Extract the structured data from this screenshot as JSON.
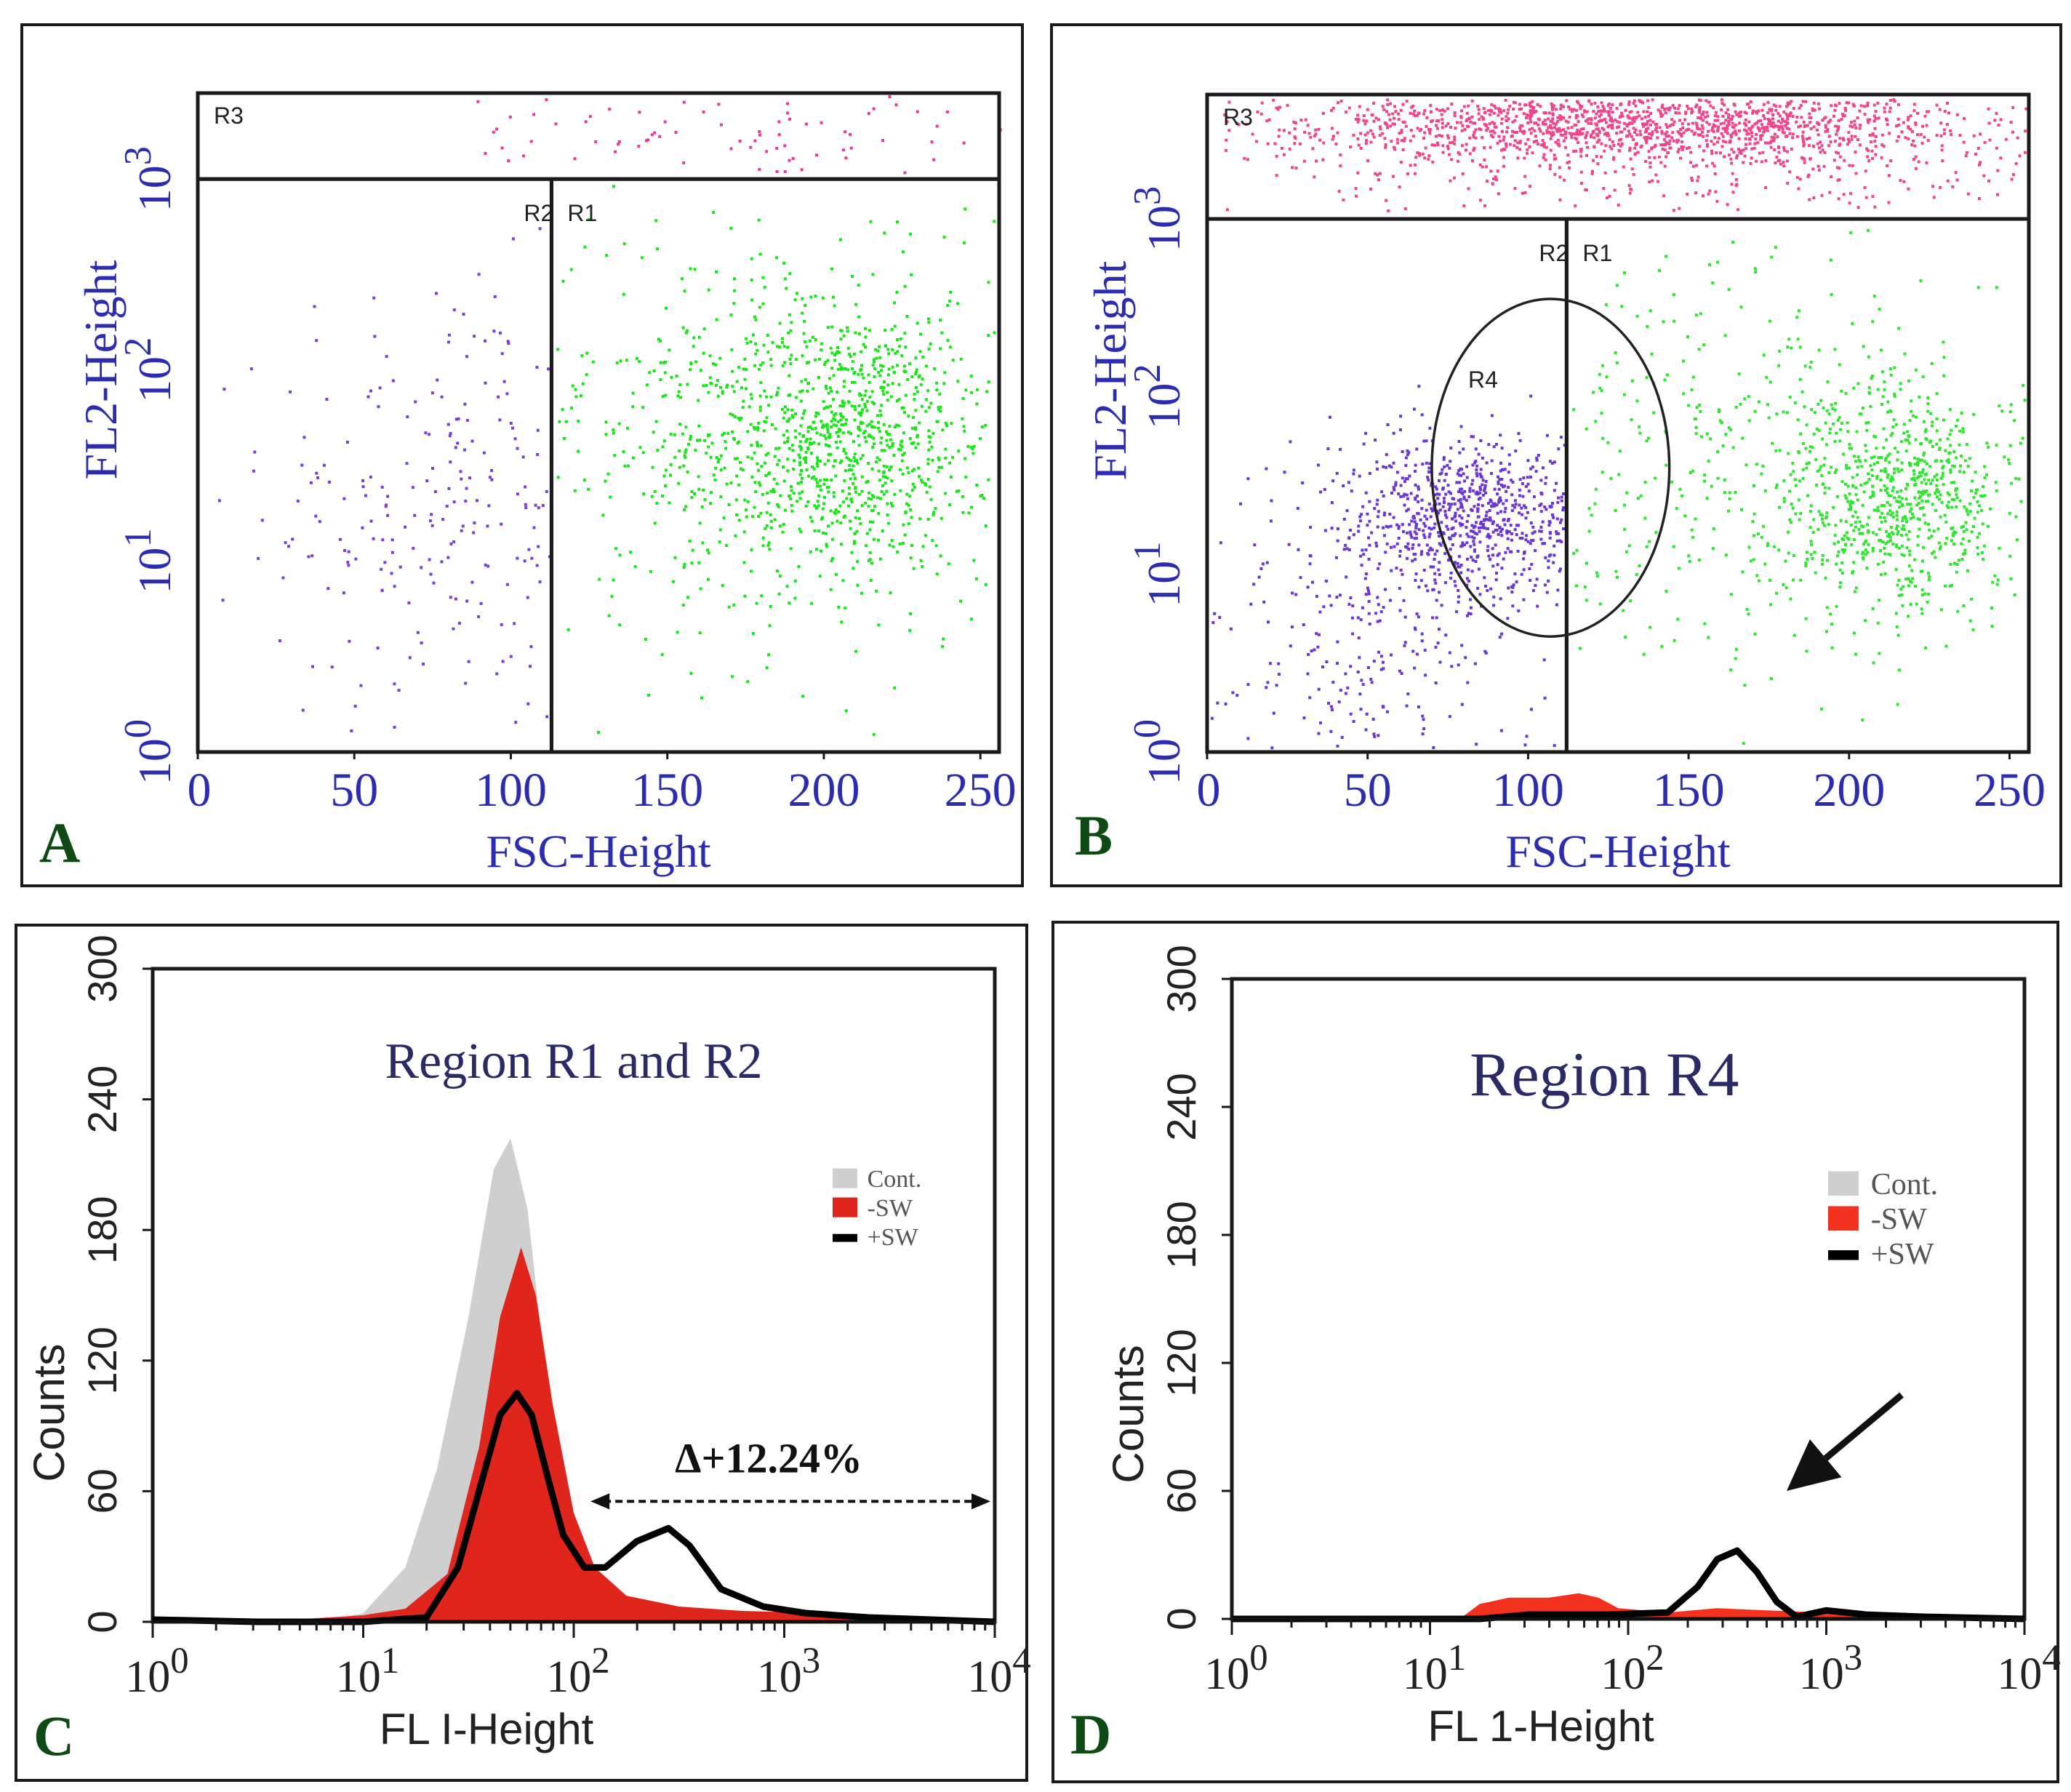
{
  "chart_data": [
    {
      "id": "A",
      "type": "scatter",
      "panel_label": "A",
      "xlabel": "FSC-Height",
      "ylabel": "FL2-Height",
      "xlim": [
        0,
        256
      ],
      "ylim_log10": [
        0,
        3.45
      ],
      "x_ticks": [
        "0",
        "50",
        "100",
        "150",
        "200",
        "250"
      ],
      "x_tick_values": [
        0,
        50,
        100,
        150,
        200,
        250
      ],
      "y_ticks": [
        {
          "base": "10",
          "exp": "0",
          "value": 0
        },
        {
          "base": "10",
          "exp": "1",
          "value": 1
        },
        {
          "base": "10",
          "exp": "2",
          "value": 2
        },
        {
          "base": "10",
          "exp": "3",
          "value": 3
        }
      ],
      "gates": [
        {
          "label": "R3",
          "type": "rect",
          "x": [
            0,
            256
          ],
          "y_log10": [
            3.0,
            3.45
          ]
        },
        {
          "label": "R2",
          "type": "rect",
          "x": [
            0,
            113
          ],
          "y_log10": [
            0,
            3.0
          ]
        },
        {
          "label": "R1",
          "type": "rect",
          "x": [
            113,
            256
          ],
          "y_log10": [
            0,
            3.0
          ]
        }
      ],
      "populations": [
        {
          "name": "R3 events",
          "color": "#e8399c",
          "count": 110,
          "center": [
            160,
            3.25
          ],
          "spread": [
            90,
            0.12
          ],
          "clip_x": [
            85,
            256
          ],
          "clip_y": [
            3.03,
            3.44
          ]
        },
        {
          "name": "R2 events",
          "color": "#7a3fd6",
          "count": 260,
          "center": [
            82,
            1.3
          ],
          "spread": [
            30,
            0.6
          ],
          "clip_x": [
            1,
            112
          ],
          "clip_y": [
            0.02,
            2.9
          ]
        },
        {
          "name": "R1 events",
          "color": "#19e619",
          "count": 900,
          "center": [
            205,
            1.65
          ],
          "spread": [
            24,
            0.35
          ],
          "clip_x": [
            114,
            255
          ],
          "clip_y": [
            0.02,
            2.97
          ]
        },
        {
          "name": "R1 events",
          "color": "#19e619",
          "count": 450,
          "center": [
            180,
            1.7
          ],
          "spread": [
            45,
            0.6
          ],
          "clip_x": [
            114,
            255
          ],
          "clip_y": [
            0.02,
            2.97
          ]
        }
      ]
    },
    {
      "id": "B",
      "type": "scatter",
      "panel_label": "B",
      "xlabel": "FSC-Height",
      "ylabel": "FL2-Height",
      "xlim": [
        0,
        256
      ],
      "ylim_log10": [
        0,
        3.7
      ],
      "x_ticks": [
        "0",
        "50",
        "100",
        "150",
        "200",
        "250"
      ],
      "x_tick_values": [
        0,
        50,
        100,
        150,
        200,
        250
      ],
      "y_ticks": [
        {
          "base": "10",
          "exp": "0",
          "value": 0
        },
        {
          "base": "10",
          "exp": "1",
          "value": 1
        },
        {
          "base": "10",
          "exp": "2",
          "value": 2
        },
        {
          "base": "10",
          "exp": "3",
          "value": 3
        }
      ],
      "gates": [
        {
          "label": "R3",
          "type": "rect",
          "x": [
            0,
            256
          ],
          "y_log10": [
            3.0,
            3.7
          ]
        },
        {
          "label": "R2",
          "type": "rect",
          "x": [
            0,
            112
          ],
          "y_log10": [
            0,
            3.0
          ]
        },
        {
          "label": "R1",
          "type": "rect",
          "x": [
            112,
            256
          ],
          "y_log10": [
            0,
            3.0
          ]
        },
        {
          "label": "R4",
          "type": "ellipse",
          "center": [
            107,
            1.6
          ],
          "radius": [
            37,
            0.95
          ]
        }
      ],
      "populations": [
        {
          "name": "R3 events",
          "color": "#f0448c",
          "count": 1400,
          "center": [
            130,
            3.55
          ],
          "spread": [
            55,
            0.1
          ],
          "clip_x": [
            5,
            255
          ],
          "clip_y": [
            3.03,
            3.68
          ]
        },
        {
          "name": "R3 events",
          "color": "#f0448c",
          "count": 450,
          "center": [
            150,
            3.35
          ],
          "spread": [
            70,
            0.18
          ],
          "clip_x": [
            5,
            255
          ],
          "clip_y": [
            3.03,
            3.68
          ]
        },
        {
          "name": "R2 events",
          "color": "#6a36d4",
          "count": 750,
          "center": [
            82,
            1.35
          ],
          "spread": [
            20,
            0.22
          ],
          "clip_x": [
            1,
            111
          ],
          "clip_y": [
            0.02,
            2.95
          ]
        },
        {
          "name": "R2 events",
          "color": "#6a36d4",
          "count": 300,
          "center": [
            55,
            0.75
          ],
          "spread": [
            28,
            0.45
          ],
          "clip_x": [
            1,
            111
          ],
          "clip_y": [
            0.02,
            2.95
          ]
        },
        {
          "name": "R1 events",
          "color": "#2ee62e",
          "count": 650,
          "center": [
            215,
            1.45
          ],
          "spread": [
            18,
            0.3
          ],
          "clip_x": [
            113,
            255
          ],
          "clip_y": [
            0.02,
            2.95
          ]
        },
        {
          "name": "R1 events",
          "color": "#2ee62e",
          "count": 500,
          "center": [
            170,
            1.6
          ],
          "spread": [
            50,
            0.6
          ],
          "clip_x": [
            113,
            255
          ],
          "clip_y": [
            0.02,
            2.95
          ]
        }
      ]
    },
    {
      "id": "C",
      "type": "area",
      "panel_label": "C",
      "title": "Region R1 and R2",
      "xlabel": "FL I-Height",
      "ylabel": "Counts",
      "xscale": "log",
      "xlim_log10": [
        0,
        4
      ],
      "ylim": [
        0,
        300
      ],
      "y_ticks": [
        "0",
        "60",
        "120",
        "180",
        "240",
        "300"
      ],
      "y_tick_values": [
        0,
        60,
        120,
        180,
        240,
        300
      ],
      "x_ticks": [
        {
          "base": "10",
          "exp": "0",
          "value": 0
        },
        {
          "base": "10",
          "exp": "1",
          "value": 1
        },
        {
          "base": "10",
          "exp": "2",
          "value": 2
        },
        {
          "base": "10",
          "exp": "3",
          "value": 3
        },
        {
          "base": "10",
          "exp": "4",
          "value": 4
        }
      ],
      "legend": [
        {
          "label": "Cont.",
          "color": "#cfcfcf",
          "style": "fill"
        },
        {
          "label": "-SW",
          "color": "#e0251c",
          "style": "fill"
        },
        {
          "label": "+SW",
          "color": "#000000",
          "style": "line"
        }
      ],
      "annotation": {
        "text": "Δ+12.24%",
        "x_start_log10": 2.08,
        "x_end_log10": 4.0,
        "y": 60
      },
      "series": [
        {
          "name": "Cont.",
          "color": "#cfcfcf",
          "style": "fill",
          "x_log10": [
            0,
            0.8,
            1.0,
            1.2,
            1.35,
            1.5,
            1.62,
            1.7,
            1.78,
            1.86,
            1.95,
            2.05,
            2.2,
            2.5,
            4.0
          ],
          "y": [
            0,
            0,
            4,
            25,
            70,
            140,
            208,
            222,
            190,
            120,
            55,
            22,
            8,
            2,
            0
          ]
        },
        {
          "name": "-SW",
          "color": "#e0251c",
          "style": "fill",
          "x_log10": [
            0,
            0.5,
            1.0,
            1.2,
            1.4,
            1.55,
            1.65,
            1.75,
            1.82,
            1.9,
            2.0,
            2.1,
            2.25,
            2.5,
            2.8,
            3.2,
            3.6,
            4.0
          ],
          "y": [
            0,
            0,
            3,
            6,
            22,
            80,
            140,
            172,
            150,
            100,
            50,
            25,
            12,
            7,
            5,
            4,
            1,
            0
          ]
        },
        {
          "name": "+SW",
          "color": "#000000",
          "style": "line",
          "x_log10": [
            0,
            0.5,
            1.0,
            1.3,
            1.45,
            1.55,
            1.65,
            1.73,
            1.8,
            1.88,
            1.95,
            2.05,
            2.15,
            2.3,
            2.45,
            2.55,
            2.7,
            2.9,
            3.1,
            3.4,
            3.7,
            4.0
          ],
          "y": [
            1,
            0,
            0,
            2,
            25,
            60,
            95,
            105,
            95,
            65,
            40,
            25,
            25,
            37,
            43,
            35,
            15,
            7,
            4,
            2,
            1,
            0
          ]
        }
      ]
    },
    {
      "id": "D",
      "type": "area",
      "panel_label": "D",
      "title": "Region R4",
      "xlabel": "FL 1-Height",
      "ylabel": "Counts",
      "xscale": "log",
      "xlim_log10": [
        0,
        4
      ],
      "ylim": [
        0,
        300
      ],
      "y_ticks": [
        "0",
        "60",
        "120",
        "180",
        "240",
        "300"
      ],
      "y_tick_values": [
        0,
        60,
        120,
        180,
        240,
        300
      ],
      "x_ticks": [
        {
          "base": "10",
          "exp": "0",
          "value": 0
        },
        {
          "base": "10",
          "exp": "1",
          "value": 1
        },
        {
          "base": "10",
          "exp": "2",
          "value": 2
        },
        {
          "base": "10",
          "exp": "3",
          "value": 3
        },
        {
          "base": "10",
          "exp": "4",
          "value": 4
        }
      ],
      "legend": [
        {
          "label": "Cont.",
          "color": "#cfcfcf",
          "style": "fill"
        },
        {
          "label": "-SW",
          "color": "#f2321e",
          "style": "fill"
        },
        {
          "label": "+SW",
          "color": "#000000",
          "style": "line"
        }
      ],
      "arrow": {
        "from": [
          3.38,
          105
        ],
        "to": [
          2.8,
          60
        ]
      },
      "series": [
        {
          "name": "Cont.",
          "color": "#cfcfcf",
          "style": "fill",
          "x_log10": [
            0,
            4.0
          ],
          "y": [
            0,
            0
          ]
        },
        {
          "name": "-SW",
          "color": "#f2321e",
          "style": "fill",
          "x_log10": [
            0,
            1.15,
            1.25,
            1.4,
            1.6,
            1.75,
            1.85,
            1.95,
            2.2,
            2.45,
            2.7,
            3.0,
            3.3,
            3.55,
            3.6,
            4.0
          ],
          "y": [
            0,
            0,
            7,
            10,
            10,
            12,
            10,
            5,
            3,
            5,
            4,
            3,
            3,
            2,
            0,
            0
          ]
        },
        {
          "name": "+SW",
          "color": "#000000",
          "style": "line",
          "x_log10": [
            0,
            1.0,
            1.25,
            1.5,
            1.9,
            2.2,
            2.35,
            2.45,
            2.55,
            2.65,
            2.75,
            2.85,
            3.0,
            3.2,
            3.5,
            4.0
          ],
          "y": [
            0,
            0,
            0,
            2,
            2,
            3,
            15,
            28,
            32,
            22,
            8,
            1,
            4,
            2,
            1,
            0
          ]
        }
      ]
    }
  ]
}
